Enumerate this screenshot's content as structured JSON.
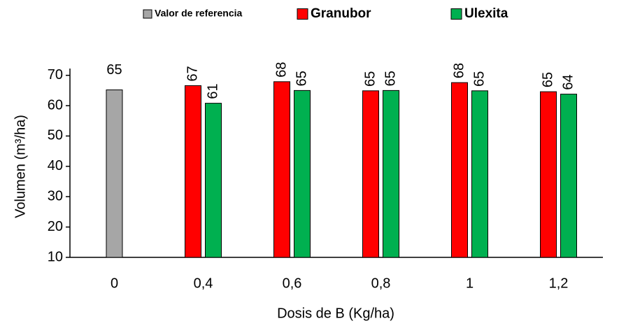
{
  "chart_data": {
    "type": "bar",
    "x_label": "Dosis de B (Kg/ha)",
    "y_label": "Volumen (m³/ha)",
    "categories": [
      "0",
      "0,4",
      "0,6",
      "0,8",
      "1",
      "1,2"
    ],
    "series": [
      {
        "name": "Valor de referencia",
        "color": "#a6a6a6",
        "values": [
          65.2,
          null,
          null,
          null,
          null,
          null
        ],
        "value_labels": [
          "65",
          null,
          null,
          null,
          null,
          null
        ]
      },
      {
        "name": "Granubor",
        "color": "#ff0000",
        "values": [
          null,
          66.6,
          67.9,
          64.9,
          67.6,
          64.6
        ],
        "value_labels": [
          null,
          "67",
          "68",
          "65",
          "68",
          "65"
        ]
      },
      {
        "name": "Ulexita",
        "color": "#00b050",
        "values": [
          null,
          60.8,
          65.0,
          65.0,
          64.9,
          63.8
        ],
        "value_labels": [
          null,
          "61",
          "65",
          "65",
          "65",
          "64"
        ]
      }
    ],
    "ylim": [
      10,
      75
    ],
    "yticks": [
      10,
      20,
      30,
      40,
      50,
      60,
      70
    ]
  }
}
